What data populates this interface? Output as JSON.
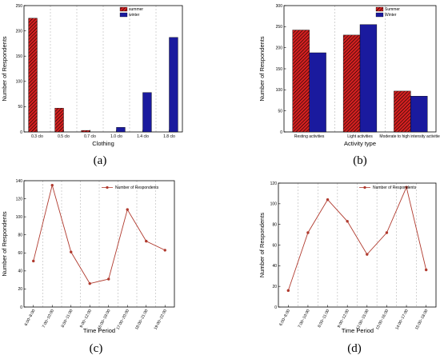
{
  "colors": {
    "summer": "#d42020",
    "winter": "#1a1a9e",
    "line": "#b03a2e",
    "grid": "#a8a8a8"
  },
  "chart_data": [
    {
      "panel": "(a)",
      "type": "bar",
      "xlabel": "Clothing",
      "ylabel": "Number of Respondents",
      "ylim": [
        0,
        250
      ],
      "yticks": [
        0,
        50,
        100,
        150,
        200,
        250
      ],
      "categories": [
        "0.3 clo",
        "0.5 clo",
        "0.7 clo",
        "1.0 clo",
        "1.4 clo",
        "1.8 clo"
      ],
      "series": [
        {
          "name": "summer",
          "values": [
            225,
            47,
            3,
            0,
            0,
            0
          ]
        },
        {
          "name": "winter",
          "values": [
            0,
            0,
            0,
            9,
            78,
            187
          ]
        }
      ],
      "legend": "top-right",
      "grid": "vertical dashed"
    },
    {
      "panel": "(b)",
      "type": "bar",
      "xlabel": "Activity type",
      "ylabel": "Number of Respondents",
      "ylim": [
        0,
        300
      ],
      "yticks": [
        0,
        50,
        100,
        150,
        200,
        250,
        300
      ],
      "categories": [
        "Resting activities",
        "Light activities",
        "Moderate to high intensity activities"
      ],
      "series": [
        {
          "name": "Summer",
          "values": [
            242,
            230,
            97
          ]
        },
        {
          "name": "Winter",
          "values": [
            188,
            255,
            85
          ]
        }
      ],
      "legend": "top-right",
      "grid": "vertical dashed"
    },
    {
      "panel": "(c)",
      "type": "line",
      "xlabel": "Time Period",
      "ylabel": "Number of Respondents",
      "ylim": [
        0,
        140
      ],
      "yticks": [
        0,
        20,
        40,
        60,
        80,
        100,
        120,
        140
      ],
      "categories": [
        "6:00~8:00",
        "7:00~10:00",
        "8:00~11:00",
        "9:00~12:00",
        "16:00~19:00",
        "17:00~20:00",
        "18:00~21:00",
        "19:00~22:00"
      ],
      "series": [
        {
          "name": "Number of Respondents",
          "values": [
            51,
            135,
            61,
            26,
            31,
            108,
            73,
            63
          ]
        }
      ],
      "legend": "top-center",
      "grid": "vertical dashed"
    },
    {
      "panel": "(d)",
      "type": "line",
      "xlabel": "Time Period",
      "ylabel": "Number of Respondents",
      "ylim": [
        0,
        120
      ],
      "yticks": [
        0,
        20,
        40,
        60,
        80,
        100,
        120
      ],
      "categories": [
        "6:00~8:00",
        "7:00~10:00",
        "8:00~11:00",
        "9:00~12:00",
        "12:00~15:00",
        "13:00~16:00",
        "14:00~17:00",
        "15:00~18:00"
      ],
      "series": [
        {
          "name": "Number of Respondents",
          "values": [
            16,
            72,
            104,
            83,
            51,
            72,
            116,
            36
          ]
        }
      ],
      "legend": "top-right",
      "grid": "vertical dashed"
    }
  ]
}
